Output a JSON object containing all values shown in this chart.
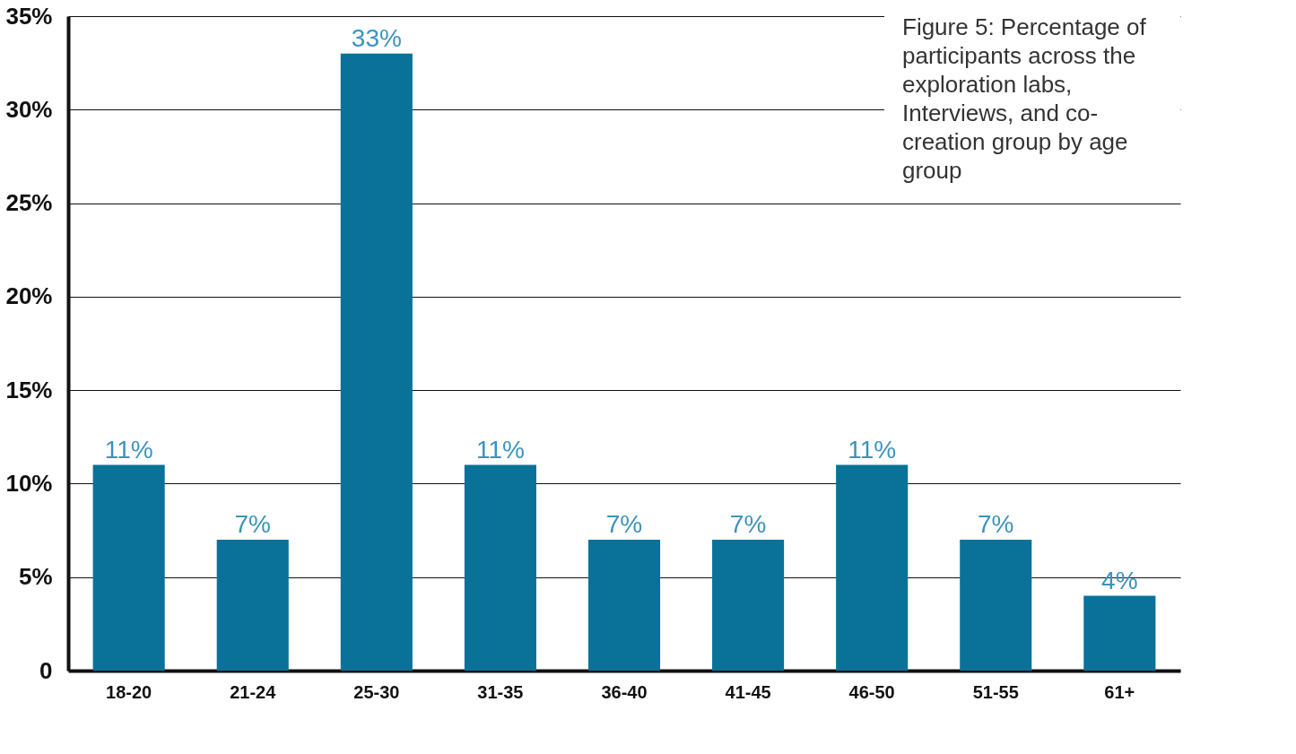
{
  "chart_data": {
    "type": "bar",
    "title": "Figure 5: Percentage of participants across the exploration labs, Interviews, and co-creation group by age group",
    "categories": [
      "18-20",
      "21-24",
      "25-30",
      "31-35",
      "36-40",
      "41-45",
      "46-50",
      "51-55",
      "61+"
    ],
    "values": [
      11,
      7,
      33,
      11,
      7,
      7,
      11,
      7,
      4
    ],
    "color": "#0a7199",
    "ylim": [
      0,
      35
    ],
    "yticks": [
      {
        "value": 0,
        "label": "0"
      },
      {
        "value": 5,
        "label": "5%"
      },
      {
        "value": 10,
        "label": "10%"
      },
      {
        "value": 15,
        "label": "15%"
      },
      {
        "value": 20,
        "label": "20%"
      },
      {
        "value": 25,
        "label": "25%"
      },
      {
        "value": 30,
        "label": "30%"
      },
      {
        "value": 35,
        "label": "35%"
      }
    ],
    "grid": "y",
    "value_labels": [
      "11%",
      "7%",
      "33%",
      "11%",
      "7%",
      "7%",
      "11%",
      "7%",
      "4%"
    ]
  }
}
